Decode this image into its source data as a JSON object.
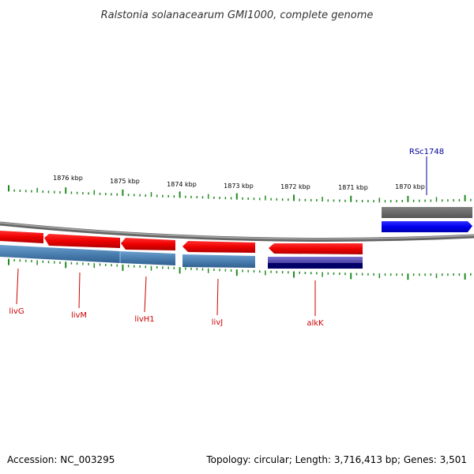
{
  "title": "Ralstonia solanacearum GMI1000, complete genome",
  "footer": {
    "accession": "Accession: NC_003295",
    "topology": "Topology: circular; Length: 3,716,413 bp; Genes: 3,501"
  },
  "kbp_labels": [
    "1876 kbp",
    "1875 kbp",
    "1874 kbp",
    "1873 kbp",
    "1872 kbp",
    "1871 kbp",
    "1870 kbp"
  ],
  "genes": [
    {
      "name": "livG",
      "color": "#cc0000"
    },
    {
      "name": "livM",
      "color": "#cc0000"
    },
    {
      "name": "livH1",
      "color": "#cc0000"
    },
    {
      "name": "livJ",
      "color": "#cc0000"
    },
    {
      "name": "alkK",
      "color": "#cc0000"
    },
    {
      "name": "RSc1748",
      "color": "#000099"
    }
  ],
  "colors": {
    "cds_forward": "#0000ee",
    "cds_reverse": "#ee0000",
    "gene_block": "#666666",
    "steel_blue": "#4a7fb0",
    "purple": "#5a4fb0",
    "navy": "#000066",
    "ticks": "#228b22",
    "backbone": "#888888"
  }
}
